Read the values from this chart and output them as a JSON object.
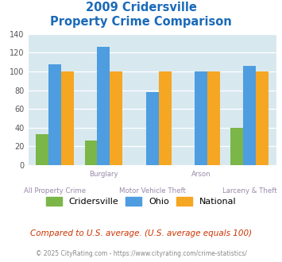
{
  "title_line1": "2009 Cridersville",
  "title_line2": "Property Crime Comparison",
  "title_color": "#1a6ab8",
  "group_labels_row1": [
    "",
    "Burglary",
    "",
    "Arson",
    ""
  ],
  "group_labels_row2": [
    "All Property Crime",
    "",
    "Motor Vehicle Theft",
    "",
    "Larceny & Theft"
  ],
  "cridersville": [
    33,
    26,
    0,
    0,
    40
  ],
  "ohio": [
    108,
    126,
    78,
    100,
    106
  ],
  "national": [
    100,
    100,
    100,
    100,
    100
  ],
  "cridersville_color": "#7ab648",
  "ohio_color": "#4d9de0",
  "national_color": "#f5a623",
  "ylim": [
    0,
    140
  ],
  "yticks": [
    0,
    20,
    40,
    60,
    80,
    100,
    120,
    140
  ],
  "plot_bg_color": "#d8e8ef",
  "legend_labels": [
    "Cridersville",
    "Ohio",
    "National"
  ],
  "footnote1": "Compared to U.S. average. (U.S. average equals 100)",
  "footnote2": "© 2025 CityRating.com - https://www.cityrating.com/crime-statistics/",
  "footnote1_color": "#cc3300",
  "footnote2_color": "#888888",
  "label_color": "#9988aa"
}
